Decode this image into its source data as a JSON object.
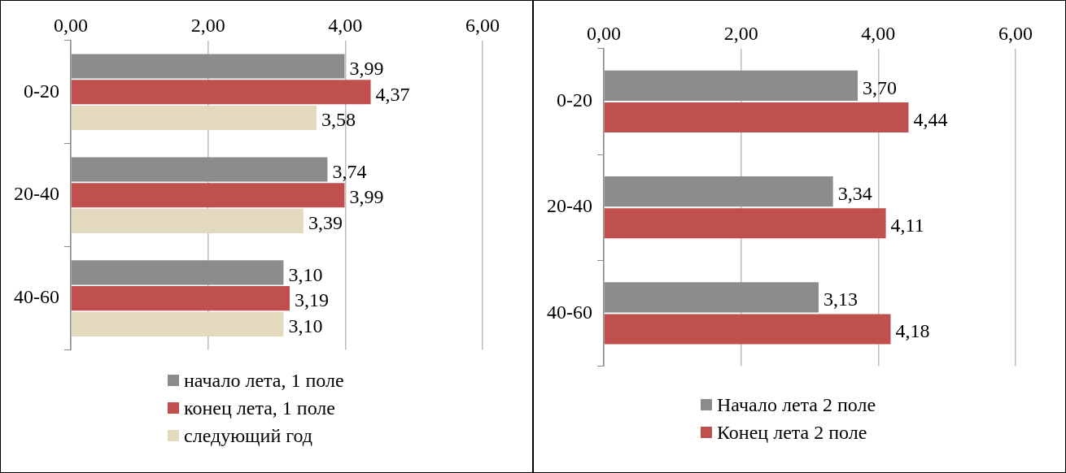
{
  "chart_data": [
    {
      "type": "bar",
      "orientation": "horizontal",
      "categories": [
        "0-20",
        "20-40",
        "40-60"
      ],
      "series": [
        {
          "name": "начало лета, 1 поле",
          "color": "#8c8c8c",
          "values": [
            3.99,
            3.74,
            3.1
          ],
          "value_labels": [
            "3,99",
            "3,74",
            "3,10"
          ]
        },
        {
          "name": "конец лета, 1 поле",
          "color": "#c0504d",
          "values": [
            4.37,
            3.99,
            3.19
          ],
          "value_labels": [
            "4,37",
            "3,99",
            "3,19"
          ]
        },
        {
          "name": "следующий год",
          "color": "#e3d9bf",
          "values": [
            3.58,
            3.39,
            3.1
          ],
          "value_labels": [
            "3,58",
            "3,39",
            "3,10"
          ]
        }
      ],
      "xlim": [
        0,
        6
      ],
      "xticks": [
        {
          "value": 0,
          "label": "0,00"
        },
        {
          "value": 2,
          "label": "2,00"
        },
        {
          "value": 4,
          "label": "4,00"
        },
        {
          "value": 6,
          "label": "6,00"
        }
      ],
      "grid": "x",
      "legend": "bottom"
    },
    {
      "type": "bar",
      "orientation": "horizontal",
      "categories": [
        "0-20",
        "20-40",
        "40-60"
      ],
      "series": [
        {
          "name": "Начало лета  2 поле",
          "color": "#8c8c8c",
          "values": [
            3.7,
            3.34,
            3.13
          ],
          "value_labels": [
            "3,70",
            "3,34",
            "3,13"
          ]
        },
        {
          "name": "Конец лета 2 поле",
          "color": "#c0504d",
          "values": [
            4.44,
            4.11,
            4.18
          ],
          "value_labels": [
            "4,44",
            "4,11",
            "4,18"
          ]
        }
      ],
      "xlim": [
        0,
        6
      ],
      "xticks": [
        {
          "value": 0,
          "label": "0,00"
        },
        {
          "value": 2,
          "label": "2,00"
        },
        {
          "value": 4,
          "label": "4,00"
        },
        {
          "value": 6,
          "label": "6,00"
        }
      ],
      "grid": "x",
      "legend": "bottom"
    }
  ]
}
